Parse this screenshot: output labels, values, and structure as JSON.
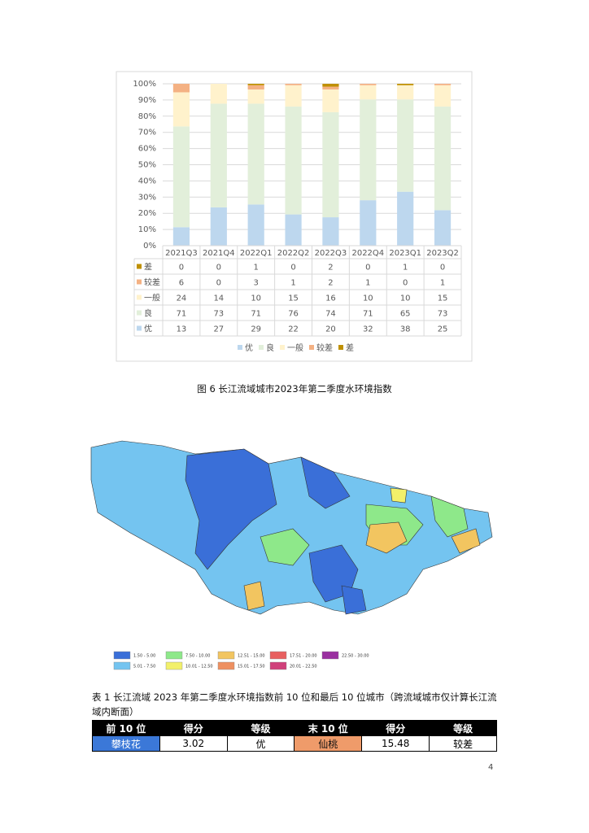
{
  "chart_data": {
    "type": "stacked_bar_100",
    "categories": [
      "2021Q3",
      "2021Q4",
      "2022Q1",
      "2022Q2",
      "2022Q3",
      "2022Q4",
      "2023Q1",
      "2023Q2"
    ],
    "series": [
      {
        "name": "优",
        "color": "#bdd7ee",
        "values": [
          13,
          27,
          29,
          22,
          20,
          32,
          38,
          25
        ]
      },
      {
        "name": "良",
        "color": "#e2efda",
        "values": [
          71,
          73,
          71,
          76,
          74,
          71,
          65,
          73
        ]
      },
      {
        "name": "一般",
        "color": "#fff2cc",
        "values": [
          24,
          14,
          10,
          15,
          16,
          10,
          10,
          15
        ]
      },
      {
        "name": "较差",
        "color": "#f4b183",
        "values": [
          6,
          0,
          3,
          1,
          2,
          1,
          0,
          1
        ]
      },
      {
        "name": "差",
        "color": "#bf9000",
        "values": [
          0,
          0,
          1,
          0,
          2,
          0,
          1,
          0
        ]
      }
    ],
    "ylim": [
      0,
      100
    ],
    "yticks": [
      {
        "value": 0,
        "label": "0%"
      },
      {
        "value": 10,
        "label": "10%"
      },
      {
        "value": 20,
        "label": "20%"
      },
      {
        "value": 30,
        "label": "30%"
      },
      {
        "value": 40,
        "label": "40%"
      },
      {
        "value": 50,
        "label": "50%"
      },
      {
        "value": 60,
        "label": "60%"
      },
      {
        "value": 70,
        "label": "70%"
      },
      {
        "value": 80,
        "label": "80%"
      },
      {
        "value": 90,
        "label": "90%"
      },
      {
        "value": 100,
        "label": "100%"
      }
    ],
    "grid": true
  },
  "figure_caption": "图 6 长江流域城市2023年第二季度水环境指数",
  "map_legend": [
    {
      "label": "1.50 - 5.00",
      "color": "#3a6fd8"
    },
    {
      "label": "5.01 - 7.50",
      "color": "#74c4f0"
    },
    {
      "label": "7.50 - 10.00",
      "color": "#8ee88a"
    },
    {
      "label": "10.01 - 12.50",
      "color": "#f2f06a"
    },
    {
      "label": "12.51 - 15.00",
      "color": "#f2c560"
    },
    {
      "label": "15.01 - 17.50",
      "color": "#ee9060"
    },
    {
      "label": "17.51 - 20.00",
      "color": "#e86060"
    },
    {
      "label": "20.01 - 22.50",
      "color": "#d0407a"
    },
    {
      "label": "22.50 - 30.00",
      "color": "#9a30a0"
    }
  ],
  "table": {
    "caption": "表 1 长江流域 2023 年第二季度水环境指数前 10 位和最后 10 位城市（跨流域城市仅计算长江流域内断面）",
    "header": [
      "前 10 位",
      "得分",
      "等级",
      "末 10 位",
      "得分",
      "等级"
    ],
    "rows": [
      [
        "攀枝花",
        3.02,
        "优",
        "仙桃",
        15.48,
        "较差"
      ]
    ]
  },
  "page_number": "4"
}
